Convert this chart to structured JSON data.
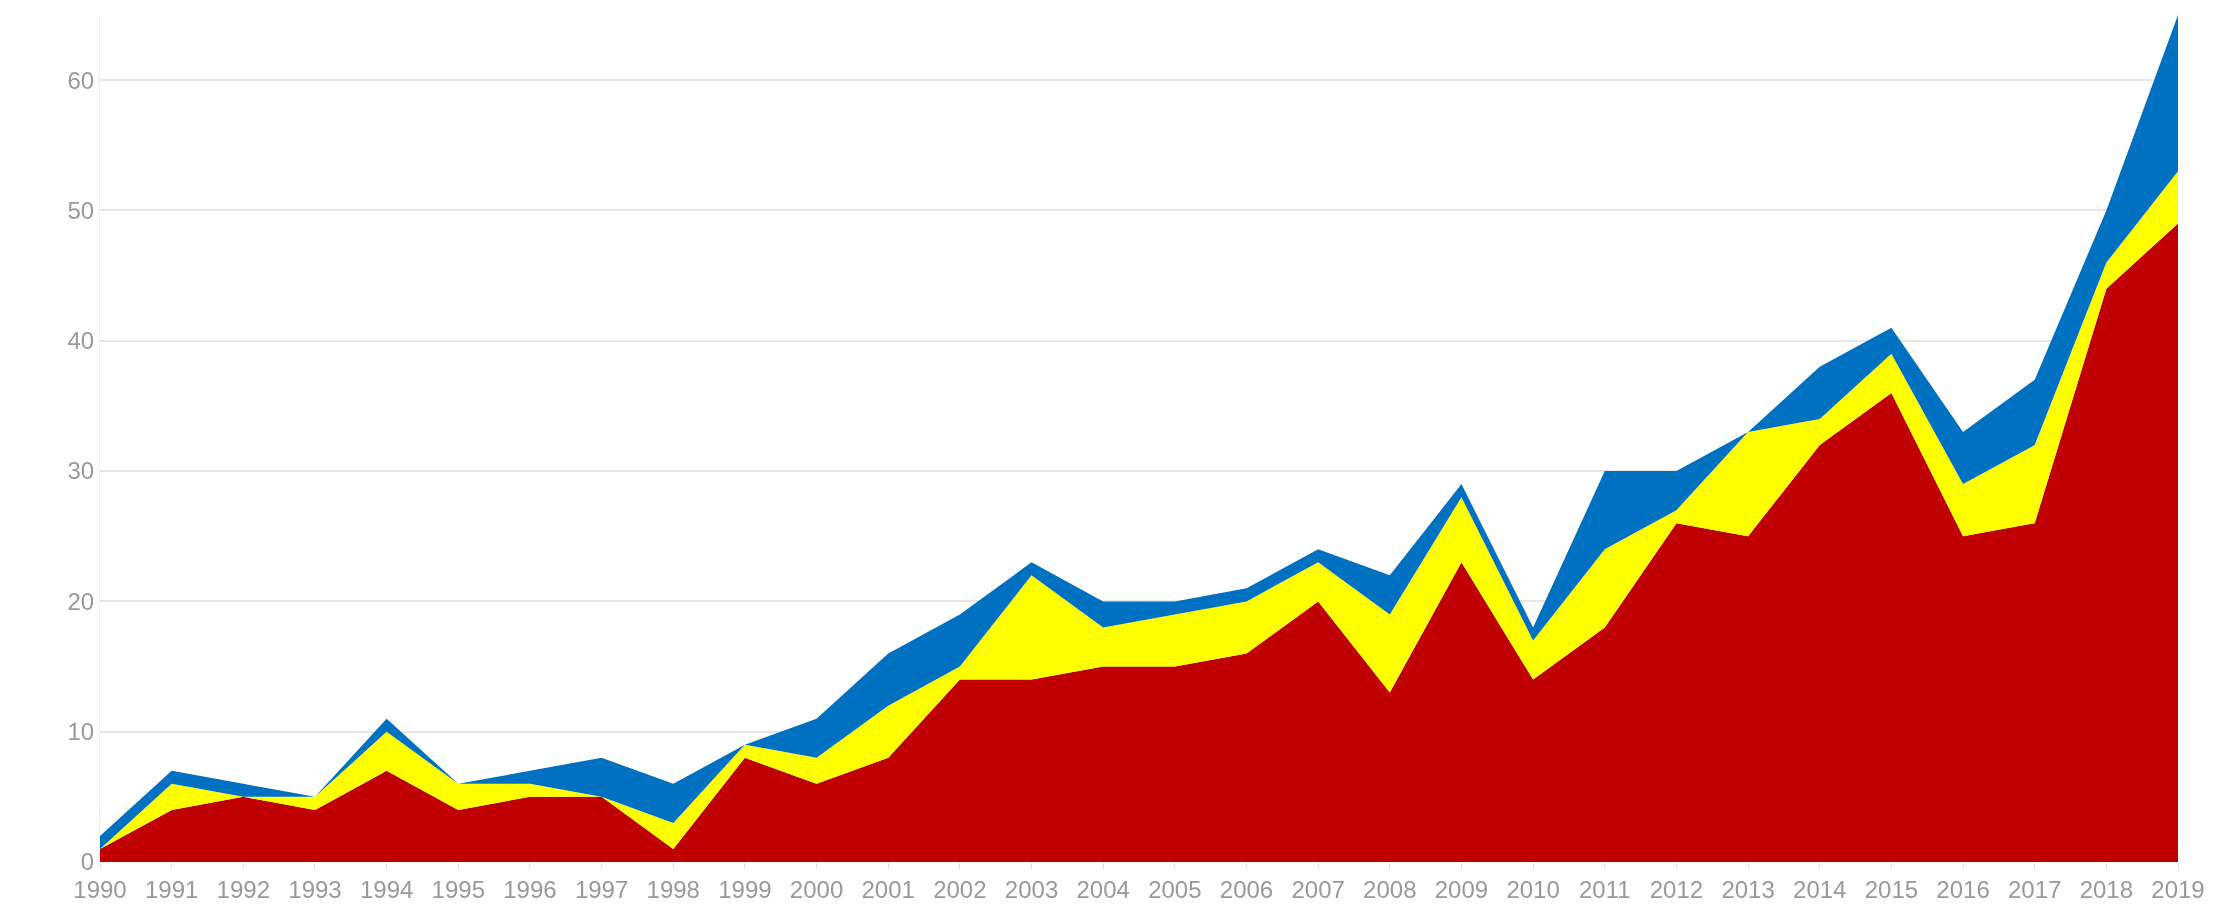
{
  "chart_data": {
    "type": "area",
    "stacked": true,
    "categories": [
      "1990",
      "1991",
      "1992",
      "1993",
      "1994",
      "1995",
      "1996",
      "1997",
      "1998",
      "1999",
      "2000",
      "2001",
      "2002",
      "2003",
      "2004",
      "2005",
      "2006",
      "2007",
      "2008",
      "2009",
      "2010",
      "2011",
      "2012",
      "2013",
      "2014",
      "2015",
      "2016",
      "2017",
      "2018",
      "2019"
    ],
    "series": [
      {
        "color": "#c00000",
        "values": [
          1,
          4,
          5,
          4,
          7,
          4,
          5,
          5,
          1,
          8,
          6,
          8,
          14,
          14,
          15,
          15,
          16,
          20,
          13,
          23,
          14,
          18,
          26,
          25,
          32,
          36,
          25,
          26,
          44,
          49
        ]
      },
      {
        "color": "#ffff00",
        "values": [
          0,
          2,
          0,
          1,
          3,
          2,
          1,
          0,
          2,
          1,
          2,
          4,
          1,
          8,
          3,
          4,
          4,
          3,
          6,
          5,
          3,
          6,
          1,
          8,
          2,
          3,
          4,
          6,
          2,
          4
        ]
      },
      {
        "color": "#0070c0",
        "values": [
          1,
          1,
          1,
          0,
          1,
          0,
          1,
          3,
          3,
          0,
          3,
          4,
          4,
          1,
          2,
          1,
          1,
          1,
          3,
          1,
          1,
          6,
          3,
          0,
          4,
          2,
          4,
          5,
          4,
          12
        ]
      }
    ],
    "ylim": [
      0,
      65
    ],
    "yticks": [
      0,
      10,
      20,
      30,
      40,
      50,
      60
    ],
    "grid": "y"
  }
}
